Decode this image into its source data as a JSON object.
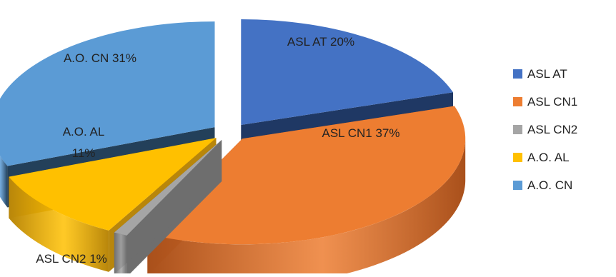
{
  "chart_data": {
    "type": "pie",
    "style": "3d-exploded",
    "legend_position": "right",
    "slices": [
      {
        "label": "ASL AT",
        "value": 20,
        "data_label": "ASL AT 20%",
        "color": "#4472C4",
        "side_color": "#1F3864"
      },
      {
        "label": "ASL CN1",
        "value": 37,
        "data_label": "ASL CN1 37%",
        "color": "#ED7D31",
        "side_color": "#A9501B"
      },
      {
        "label": "ASL CN2",
        "value": 1,
        "data_label": "ASL CN2 1%",
        "color": "#A5A5A5",
        "side_color": "#6E6E6E"
      },
      {
        "label": "A.O. AL",
        "value": 11,
        "data_label": "A.O. AL 11%",
        "color": "#FFC000",
        "side_color": "#B8860B"
      },
      {
        "label": "A.O. CN",
        "value": 31,
        "data_label": "A.O. CN 31%",
        "color": "#5B9BD5",
        "side_color": "#23405A"
      }
    ]
  }
}
